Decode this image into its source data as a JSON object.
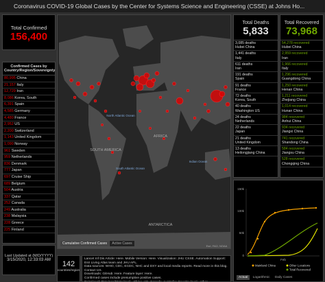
{
  "header": {
    "title": "Coronavirus COVID-19 Global Cases by the Center for Systems Science and Engineering (CSSE) at Johns Ho..."
  },
  "confirmed": {
    "label": "Total Confirmed",
    "total": "156,400",
    "list_title": "Confirmed Cases by Country/Region/Sovereignty",
    "rows": [
      {
        "count": "80,995",
        "place": "China"
      },
      {
        "count": "21,157",
        "place": "Italy"
      },
      {
        "count": "12,729",
        "place": "Iran"
      },
      {
        "count": "8,086",
        "place": "Korea, South"
      },
      {
        "count": "6,391",
        "place": "Spain"
      },
      {
        "count": "4,585",
        "place": "Germany"
      },
      {
        "count": "4,480",
        "place": "France"
      },
      {
        "count": "2,952",
        "place": "US"
      },
      {
        "count": "2,200",
        "place": "Switzerland"
      },
      {
        "count": "1,143",
        "place": "United Kingdom"
      },
      {
        "count": "1,090",
        "place": "Norway"
      },
      {
        "count": "961",
        "place": "Sweden"
      },
      {
        "count": "959",
        "place": "Netherlands"
      },
      {
        "count": "836",
        "place": "Denmark"
      },
      {
        "count": "777",
        "place": "Japan"
      },
      {
        "count": "697",
        "place": "Cruise Ship"
      },
      {
        "count": "689",
        "place": "Belgium"
      },
      {
        "count": "504",
        "place": "Austria"
      },
      {
        "count": "337",
        "place": "Qatar"
      },
      {
        "count": "252",
        "place": "Canada"
      },
      {
        "count": "249",
        "place": "Australia"
      },
      {
        "count": "238",
        "place": "Malaysia"
      },
      {
        "count": "228",
        "place": "Greece"
      },
      {
        "count": "225",
        "place": "Finland"
      }
    ]
  },
  "last_updated": {
    "label": "Last Updated at (M/D/YYYY)",
    "value": "3/15/2020, 12:33:03 AM"
  },
  "map": {
    "labels": [
      "North Atlantic Ocean",
      "South Atlantic Ocean",
      "Indian Ocean",
      "AFRICA",
      "SOUTH AMERICA",
      "ANTARCTICA"
    ],
    "tabs": [
      "Cumulative Confirmed Cases",
      "Active Cases"
    ],
    "attribution": "Esri, FAO, NOAA"
  },
  "countries": {
    "count": "142",
    "label": "countries/regions"
  },
  "info": {
    "lines": [
      "Lancet Inf Dis Article: Here. Mobile Version: Here. Visualization: JHU CSSE. Automation Support: Esri Living Atlas team and JHU APL.",
      "Data sources: WHO, CDC, ECDC, NHC and DXY and local media reports. Read more in this blog. Contact US.",
      "Downloads: GitHub: Here. Feature layer: Here.",
      "Confirmed cases include presumptive positive cases.",
      "Point level: Province/State level - China, US, Canada, Australia; Country level - other"
    ]
  },
  "deaths": {
    "label": "Total Deaths",
    "total": "5,833",
    "rows": [
      {
        "count": "3,085 deaths",
        "place": "Hubei China"
      },
      {
        "count": "1,441 deaths",
        "place": "Italy"
      },
      {
        "count": "611 deaths",
        "place": "Iran"
      },
      {
        "count": "191 deaths",
        "place": "Spain"
      },
      {
        "count": "91 deaths",
        "place": "France"
      },
      {
        "count": "72 deaths",
        "place": "Korea, South"
      },
      {
        "count": "40 deaths",
        "place": "Washington US"
      },
      {
        "count": "24 deaths",
        "place": "Netherlands"
      },
      {
        "count": "22 deaths",
        "place": "Japan"
      },
      {
        "count": "21 deaths",
        "place": "United Kingdom"
      },
      {
        "count": "13 deaths",
        "place": "Heilongjiang China"
      }
    ]
  },
  "recovered": {
    "label": "Total Recovered",
    "total": "73,968",
    "rows": [
      {
        "count": "54,278 recovered",
        "place": "Hubei China"
      },
      {
        "count": "2,959 recovered",
        "place": "Iran"
      },
      {
        "count": "1,966 recovered",
        "place": "Italy"
      },
      {
        "count": "1,296 recovered",
        "place": "Guangdong China"
      },
      {
        "count": "1,250 recovered",
        "place": "Henan China"
      },
      {
        "count": "1,211 recovered",
        "place": "Zhejiang China"
      },
      {
        "count": "1,014 recovered",
        "place": "Hunan China"
      },
      {
        "count": "984 recovered",
        "place": "Anhui China"
      },
      {
        "count": "934 recovered",
        "place": "Jiangxi China"
      },
      {
        "count": "741 recovered",
        "place": "Shandong China"
      },
      {
        "count": "584 recovered",
        "place": "Jiangsu China"
      },
      {
        "count": "528 recovered",
        "place": "Chongqing China"
      }
    ]
  },
  "chart": {
    "y_labels": [
      "150k",
      "100k",
      "50k",
      "0"
    ],
    "x_label": "Feb",
    "legend": [
      "Mainland China",
      "Other Locations",
      "Total Recovered"
    ],
    "tabs": [
      "Actual",
      "Logarithmic",
      "Daily Cases"
    ]
  }
}
